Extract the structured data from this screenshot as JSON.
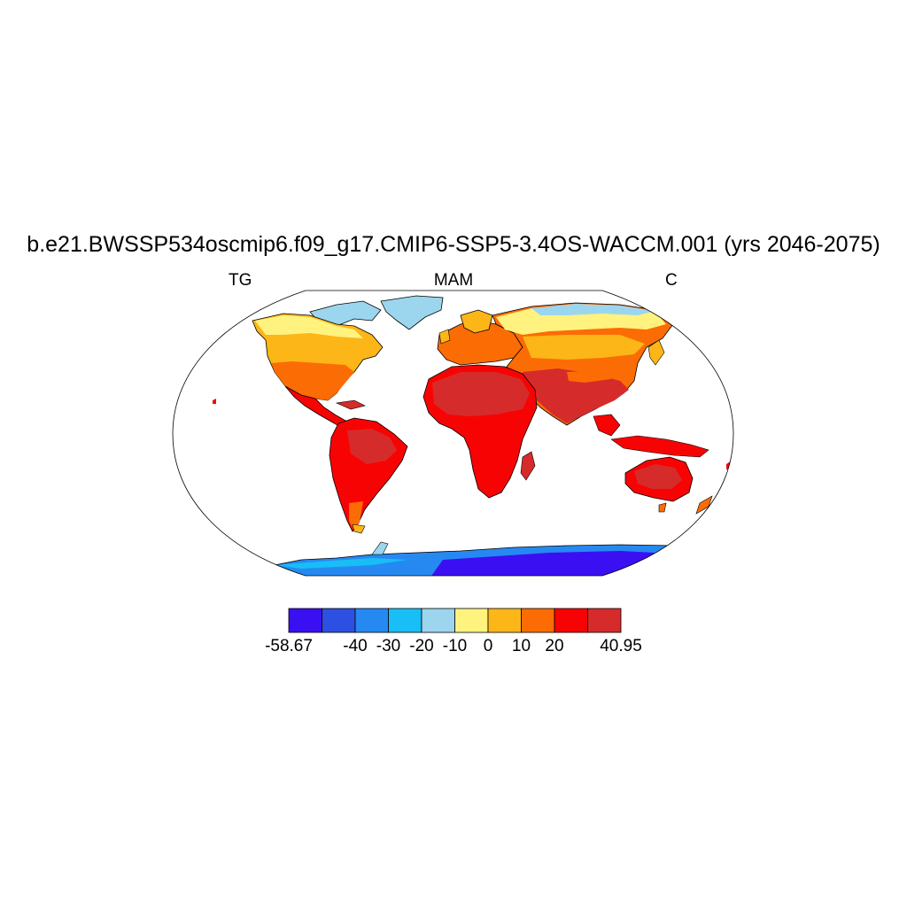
{
  "title": "b.e21.BWSSP534oscmip6.f09_g17.CMIP6-SSP5-3.4OS-WACCM.001 (yrs 2046-2075)",
  "left_label": "TG",
  "center_label": "MAM",
  "right_label": "C",
  "colorbar": {
    "colors": [
      "#3a10f2",
      "#2d50e3",
      "#2689f2",
      "#18bef5",
      "#9cd6ee",
      "#fff27f",
      "#fcb617",
      "#fc6c05",
      "#f80303",
      "#d62b2b"
    ],
    "labels": [
      "-58.67",
      "-40",
      "-30",
      "-20",
      "-10",
      "0",
      "10",
      "20",
      "40.95"
    ],
    "label_edges": [
      0,
      2,
      3,
      4,
      5,
      6,
      7,
      8,
      10
    ]
  },
  "ocean_color": "#ffffff"
}
